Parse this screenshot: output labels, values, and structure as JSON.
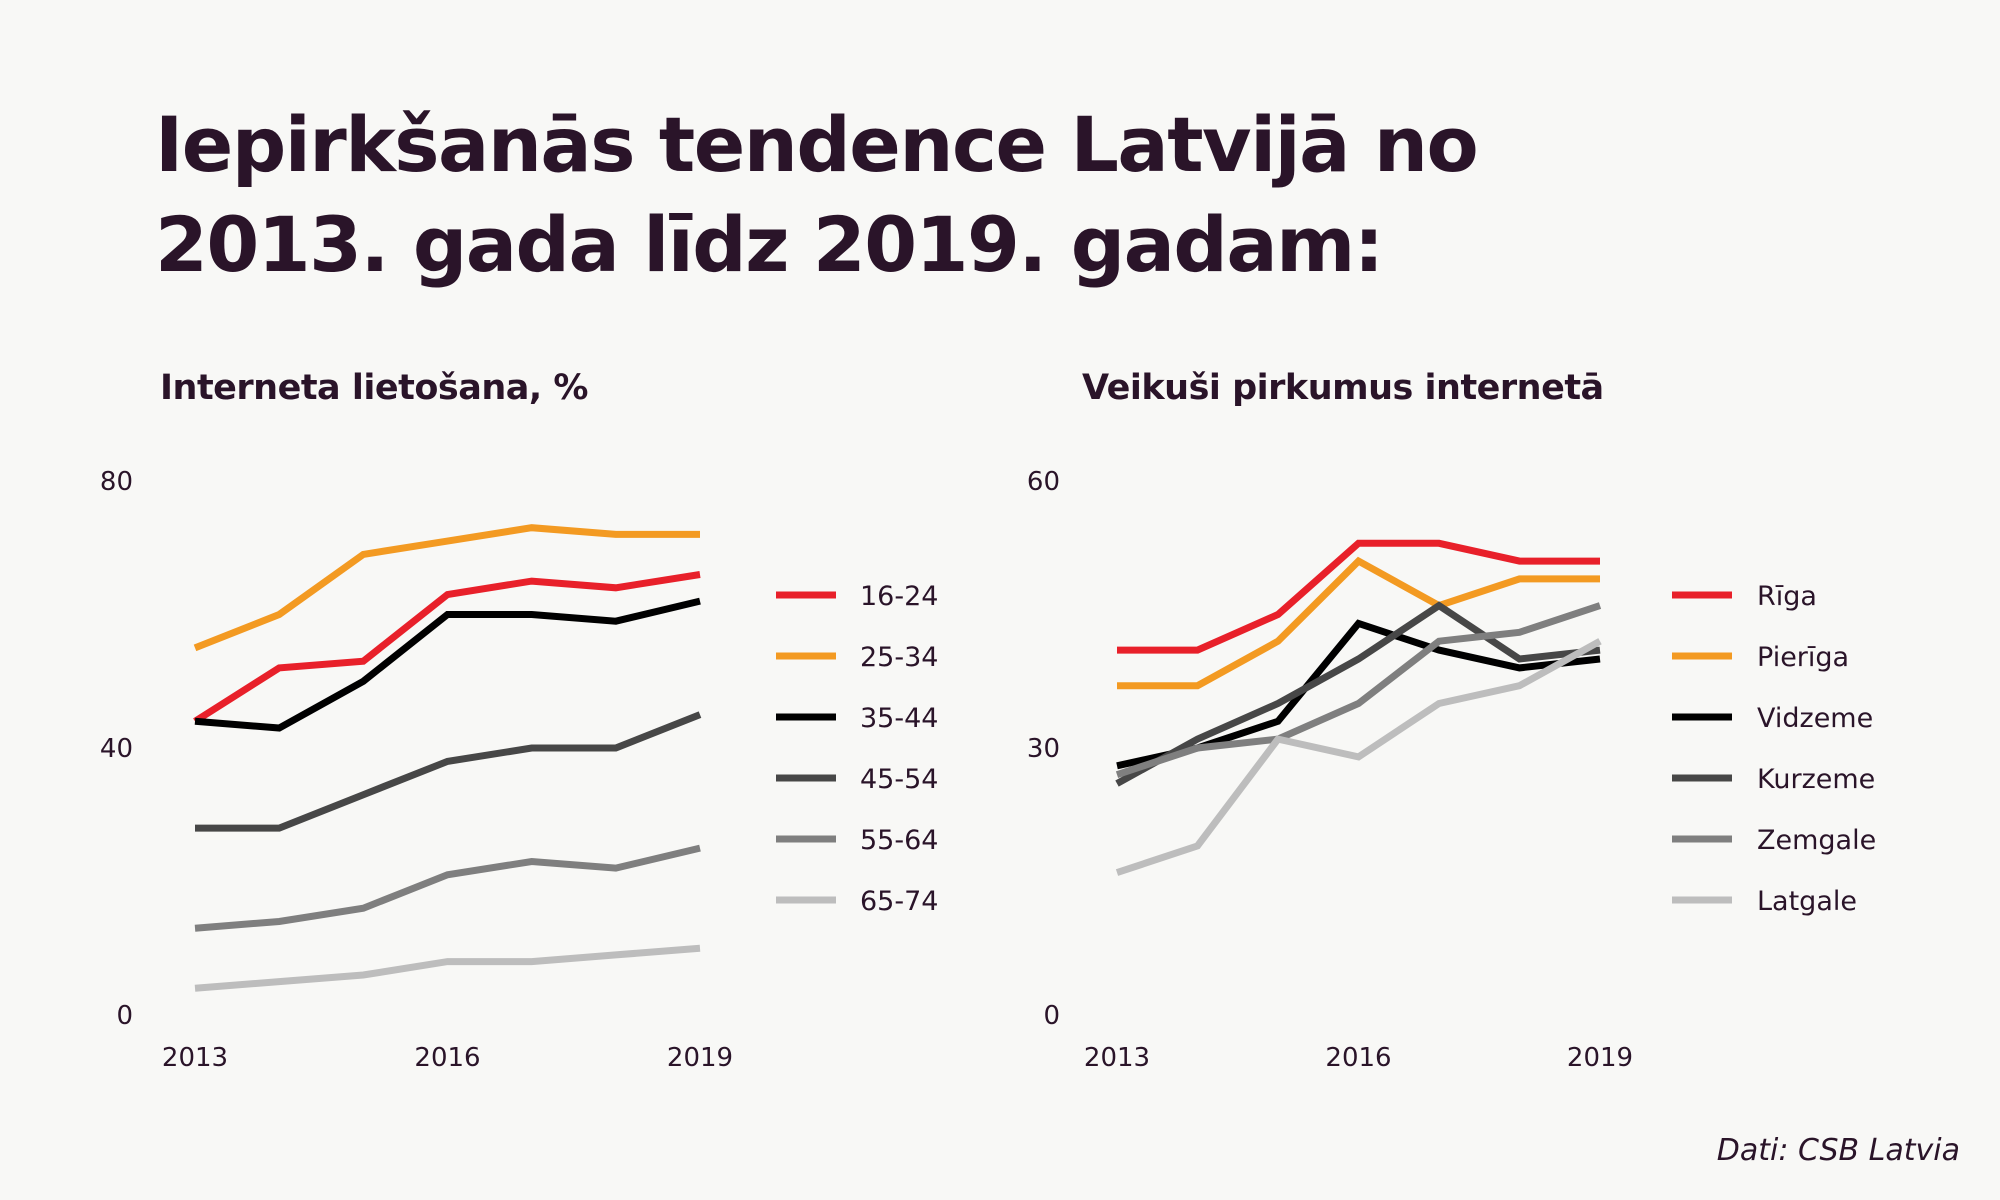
{
  "title": {
    "line1": "Iepirkšanās tendence Latvijā no",
    "line2": "2013. gada līdz 2019. gadam:"
  },
  "source": "Dati: CSB Latvia",
  "chart_data": [
    {
      "type": "line",
      "title": "Interneta lietošana, %",
      "x": [
        2013,
        2014,
        2015,
        2016,
        2017,
        2018,
        2019
      ],
      "xticks": [
        "2013",
        "2016",
        "2019"
      ],
      "ylim": [
        0,
        80
      ],
      "yticks": [
        "0",
        "40",
        "80"
      ],
      "legend": "right",
      "grid": false,
      "series": [
        {
          "name": "16-24",
          "color": "#e8202a",
          "values": [
            44,
            52,
            53,
            63,
            65,
            64,
            66
          ]
        },
        {
          "name": "25-34",
          "color": "#f39a22",
          "values": [
            55,
            60,
            69,
            71,
            73,
            72,
            72
          ]
        },
        {
          "name": "35-44",
          "color": "#000000",
          "values": [
            44,
            43,
            50,
            60,
            60,
            59,
            62
          ]
        },
        {
          "name": "45-54",
          "color": "#474747",
          "values": [
            28,
            28,
            33,
            38,
            40,
            40,
            45
          ]
        },
        {
          "name": "55-64",
          "color": "#7f7f7f",
          "values": [
            13,
            14,
            16,
            21,
            23,
            22,
            25
          ]
        },
        {
          "name": "65-74",
          "color": "#bdbdbd",
          "values": [
            4,
            5,
            6,
            8,
            8,
            9,
            10
          ]
        }
      ]
    },
    {
      "type": "line",
      "title": "Veikuši pirkumus internetā",
      "x": [
        2013,
        2014,
        2015,
        2016,
        2017,
        2018,
        2019
      ],
      "xticks": [
        "2013",
        "2016",
        "2019"
      ],
      "ylim": [
        0,
        60
      ],
      "yticks": [
        "0",
        "30",
        "60"
      ],
      "legend": "right",
      "grid": false,
      "series": [
        {
          "name": "Rīga",
          "color": "#e8202a",
          "values": [
            41,
            41,
            45,
            53,
            53,
            51,
            51
          ]
        },
        {
          "name": "Pierīga",
          "color": "#f39a22",
          "values": [
            37,
            37,
            42,
            51,
            46,
            49,
            49
          ]
        },
        {
          "name": "Vidzeme",
          "color": "#000000",
          "values": [
            28,
            30,
            33,
            44,
            41,
            39,
            40
          ]
        },
        {
          "name": "Kurzeme",
          "color": "#474747",
          "values": [
            26,
            31,
            35,
            40,
            46,
            40,
            41
          ]
        },
        {
          "name": "Zemgale",
          "color": "#7f7f7f",
          "values": [
            27,
            30,
            31,
            35,
            42,
            43,
            46
          ]
        },
        {
          "name": "Latgale",
          "color": "#bdbdbd",
          "values": [
            16,
            19,
            31,
            29,
            35,
            37,
            42
          ]
        }
      ]
    }
  ]
}
